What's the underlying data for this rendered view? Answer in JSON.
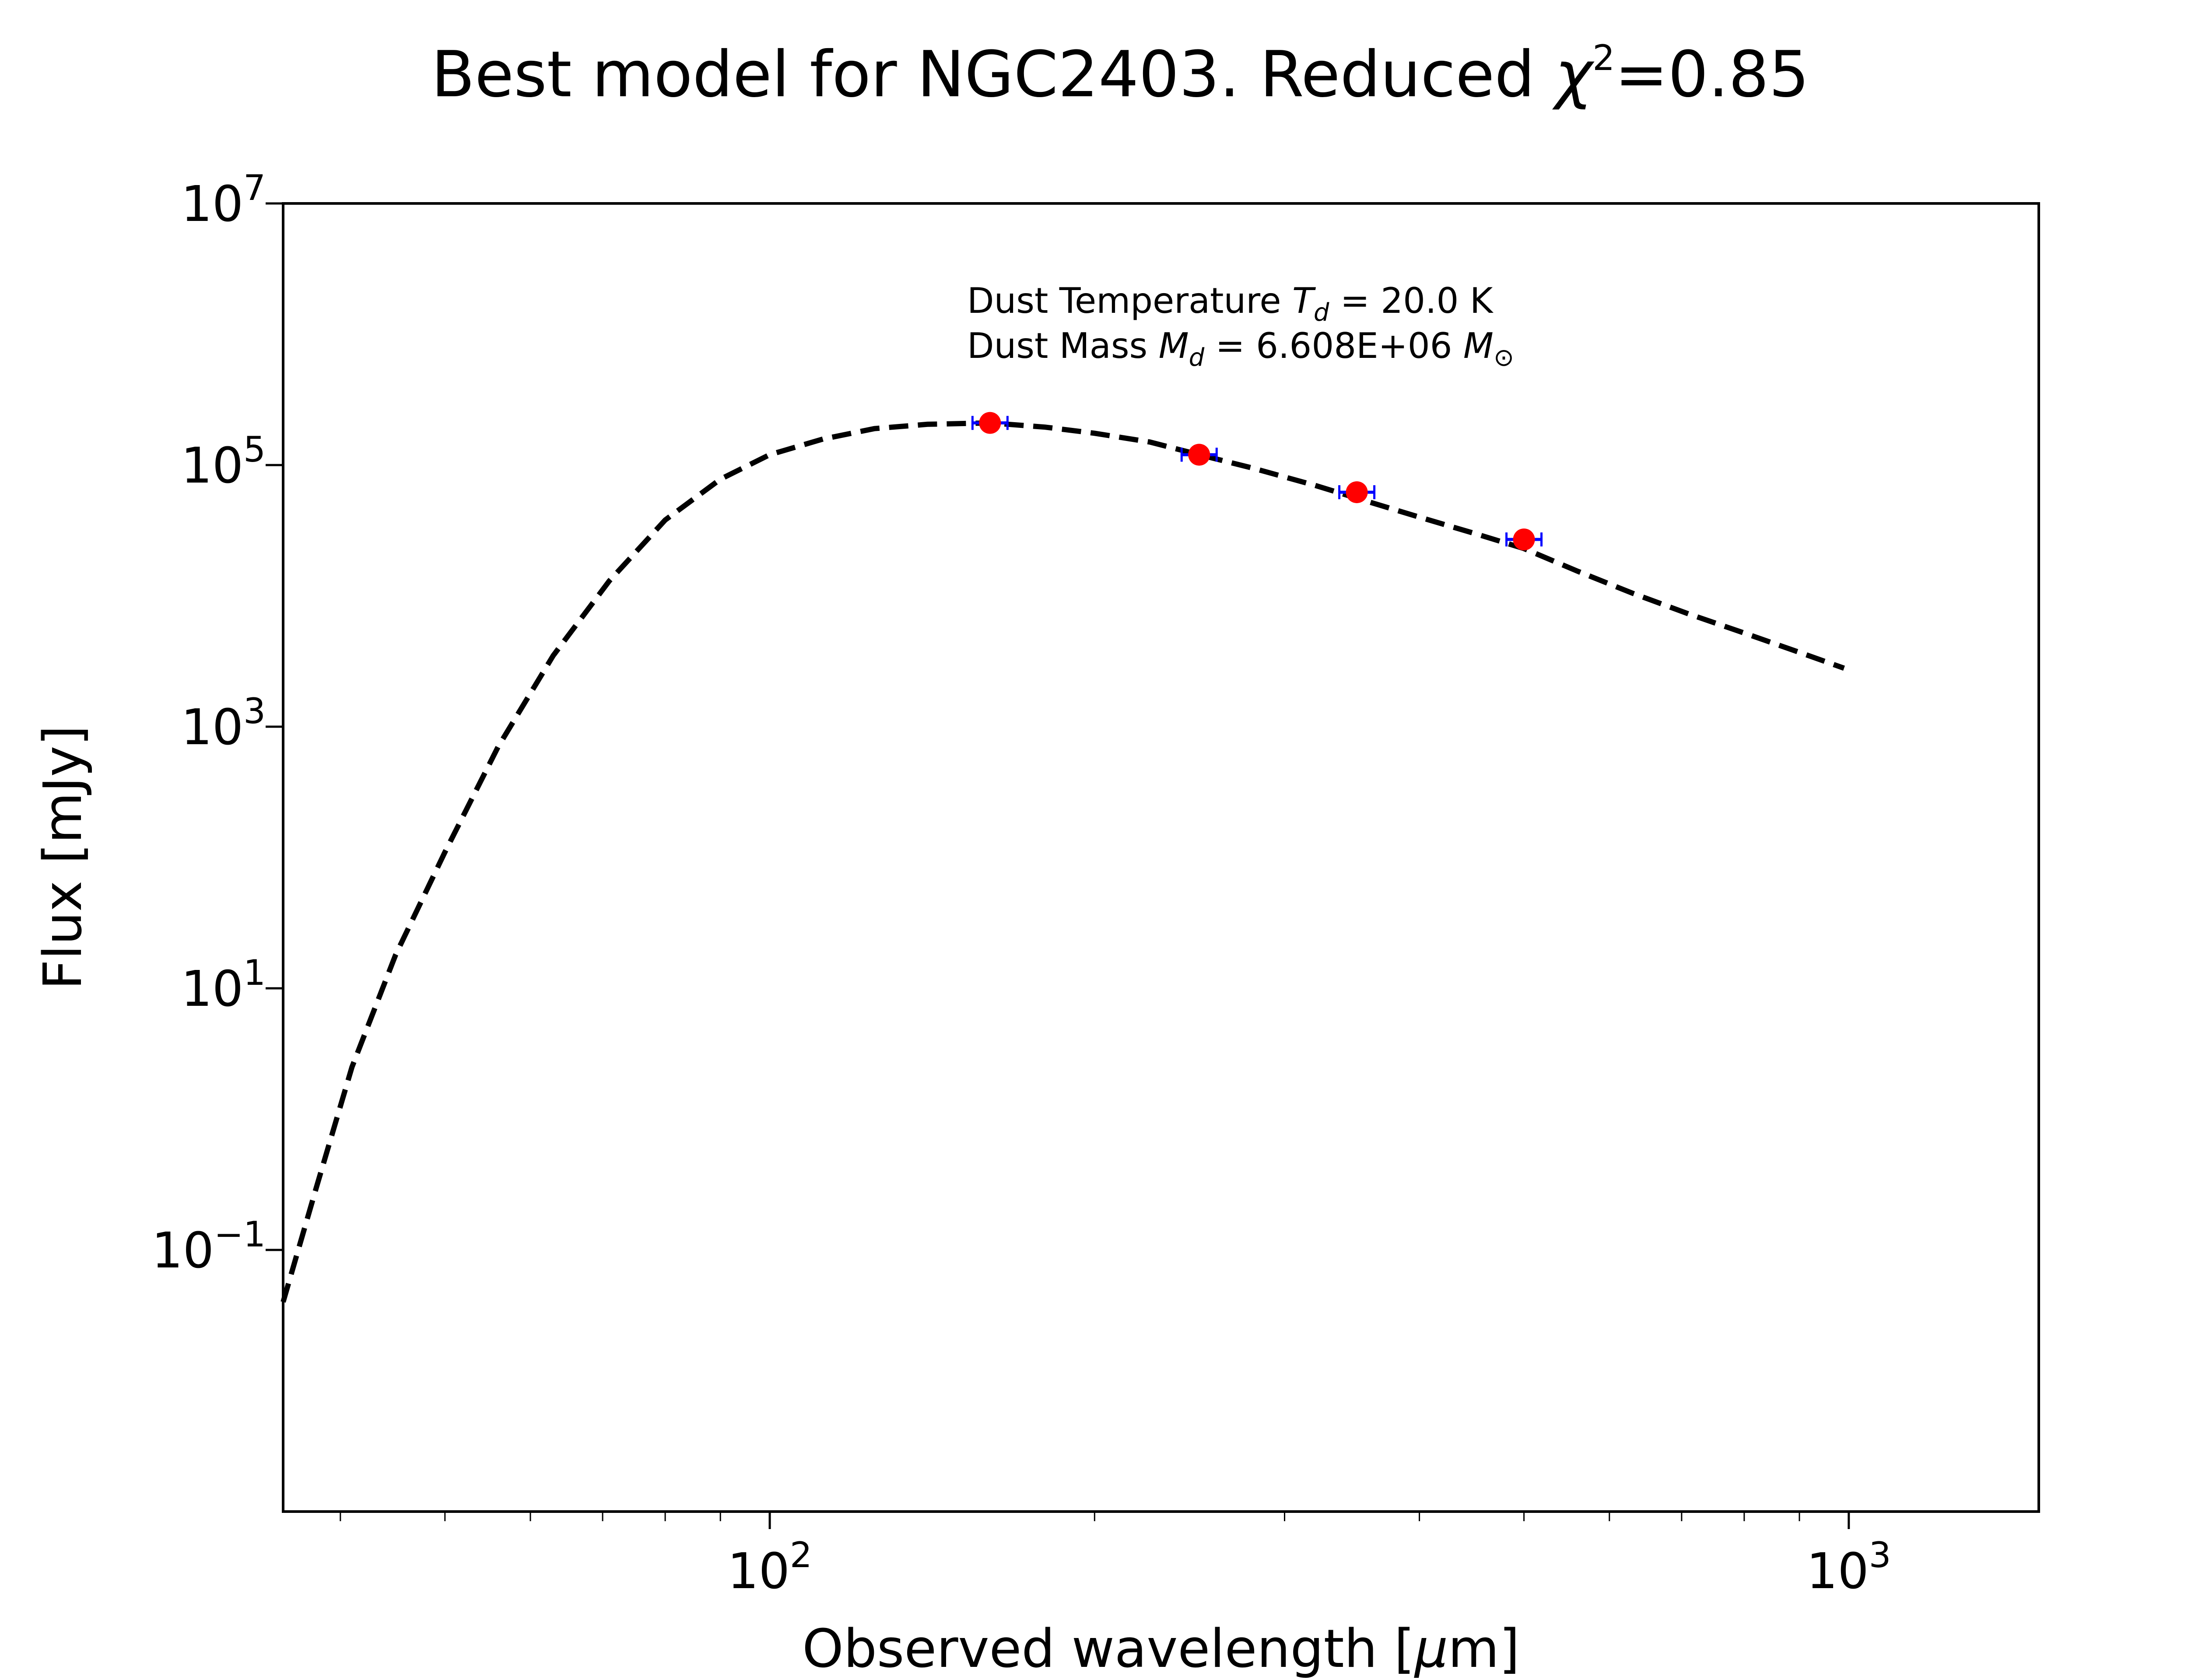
{
  "chart_data": {
    "type": "line",
    "title": {
      "main": "Best model for NGC2403. Reduced ",
      "chi_symbol": "χ",
      "chi_exp": "2",
      "chi_value": "=0.85"
    },
    "xlabel": {
      "prefix": "Observed wavelength [",
      "mu": "μ",
      "suffix": "m]"
    },
    "ylabel": "Flux [mJy]",
    "xscale": "log",
    "yscale": "log",
    "xlim": [
      35.4,
      1500
    ],
    "ylim": [
      0.001,
      10000000
    ],
    "x_ticks": [
      {
        "value": 100,
        "base": "10",
        "exp": "2"
      },
      {
        "value": 1000,
        "base": "10",
        "exp": "3"
      }
    ],
    "y_ticks": [
      {
        "value": 10000000,
        "base": "10",
        "exp": "7"
      },
      {
        "value": 100000,
        "base": "10",
        "exp": "5"
      },
      {
        "value": 1000,
        "base": "10",
        "exp": "3"
      },
      {
        "value": 10,
        "base": "10",
        "exp": "1"
      },
      {
        "value": 0.1,
        "base": "10",
        "exp": "−1"
      }
    ],
    "grid": false,
    "annotations": {
      "line1": {
        "prefix": "Dust Temperature ",
        "sym": "T",
        "sub": "d",
        "value": " = 20.0 K"
      },
      "line2": {
        "prefix": "Dust Mass ",
        "sym": "M",
        "sub": "d",
        "value": " = 6.608E+06 ",
        "unit_sym": "M",
        "unit_sub": "⊙"
      }
    },
    "series": [
      {
        "style": "dashed",
        "color": "#000000",
        "x": [
          35.4,
          38,
          41,
          45,
          50,
          56,
          63,
          71,
          80,
          90,
          100,
          112,
          125,
          140,
          160,
          180,
          200,
          225,
          250,
          280,
          320,
          360,
          400,
          450,
          500,
          560,
          630,
          710,
          800,
          900,
          990
        ],
        "y": [
          0.04,
          0.3,
          2.5,
          18,
          110,
          700,
          3500,
          13000,
          38000,
          78000,
          120000,
          158000,
          190000,
          205000,
          210000,
          195000,
          175000,
          150000,
          120000,
          95000,
          70000,
          52000,
          40000,
          30000,
          23000,
          15500,
          10500,
          7300,
          5200,
          3700,
          2800
        ]
      },
      {
        "style": "points",
        "color": "#ff0000",
        "error_color": "#0000ff",
        "x": [
          160,
          250,
          350,
          500
        ],
        "y": [
          210000,
          120000,
          62000,
          27000
        ]
      }
    ]
  }
}
